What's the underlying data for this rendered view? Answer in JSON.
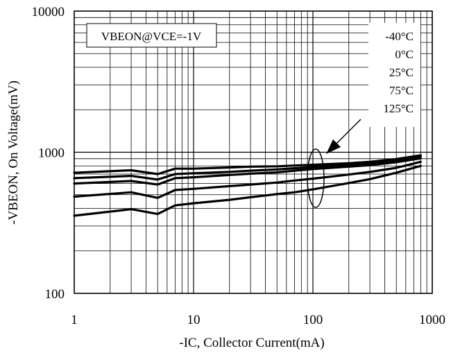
{
  "chart_data": {
    "type": "line",
    "xlabel": "-IC, Collector Current(mA)",
    "ylabel": "-VBEON, On Voltage(mV)",
    "x_scale": "log",
    "y_scale": "log",
    "xlim": [
      1,
      1000
    ],
    "ylim": [
      100,
      10000
    ],
    "grid": true,
    "x_ticks": [
      "1",
      "10",
      "100",
      "1000"
    ],
    "y_ticks": [
      "100",
      "1000",
      "10000"
    ],
    "condition_label": "VBEON@VCE=-1V",
    "legend": [
      "-40°C",
      "0°C",
      "25°C",
      "75°C",
      "125°C"
    ],
    "x": [
      1,
      3,
      5,
      7,
      10,
      20,
      30,
      50,
      70,
      100,
      200,
      300,
      500,
      800
    ],
    "series": [
      {
        "name": "-40°C",
        "values": [
          715,
          745,
          700,
          765,
          765,
          780,
          790,
          795,
          805,
          815,
          835,
          855,
          895,
          950
        ]
      },
      {
        "name": "0°C",
        "values": [
          655,
          680,
          640,
          700,
          710,
          725,
          740,
          755,
          770,
          785,
          810,
          830,
          870,
          925
        ]
      },
      {
        "name": "25°C",
        "values": [
          600,
          625,
          590,
          655,
          665,
          690,
          705,
          720,
          740,
          760,
          790,
          810,
          850,
          905
        ]
      },
      {
        "name": "75°C",
        "values": [
          485,
          520,
          475,
          540,
          550,
          575,
          590,
          610,
          630,
          650,
          695,
          725,
          775,
          855
        ]
      },
      {
        "name": "125°C",
        "values": [
          355,
          395,
          365,
          420,
          435,
          460,
          480,
          505,
          520,
          545,
          605,
          645,
          715,
          800
        ]
      }
    ]
  }
}
